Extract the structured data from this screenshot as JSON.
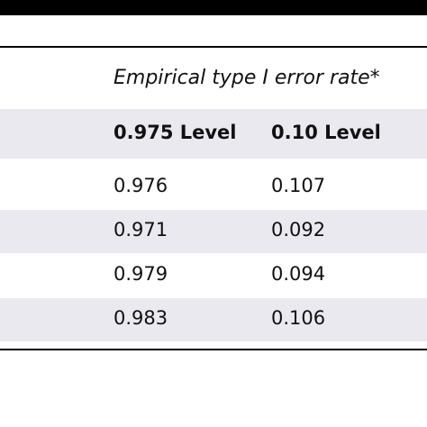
{
  "table": {
    "title": "Empirical type I error rate*",
    "columns": [
      "0.975 Level",
      "0.10 Level"
    ],
    "rows": [
      [
        "0.976",
        "0.107"
      ],
      [
        "0.971",
        "0.092"
      ],
      [
        "0.979",
        "0.094"
      ],
      [
        "0.983",
        "0.106"
      ]
    ]
  }
}
